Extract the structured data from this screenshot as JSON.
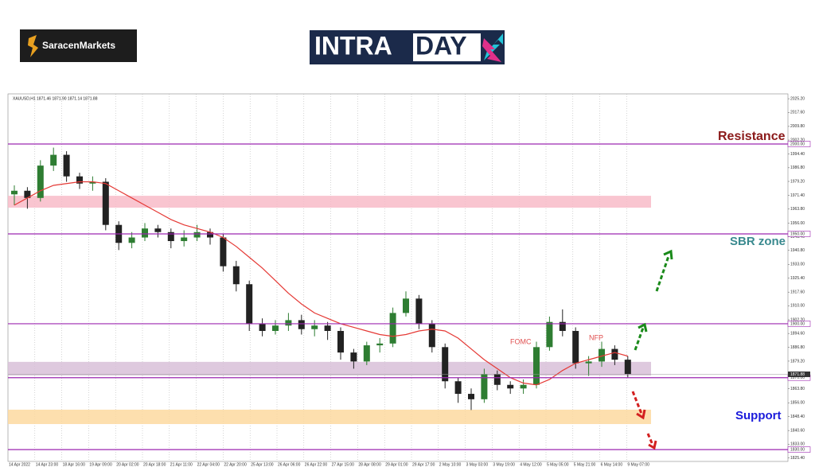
{
  "brand": "SaracenMarkets",
  "logo": [
    "INTRA",
    "DAY"
  ],
  "chart_data": {
    "type": "candlestick",
    "title": "XAUUSD,H1 1871.46 1871.90 1871.14 1871.88",
    "up_color": "#2e7d32",
    "down_color": "#222222",
    "open": [
      1972,
      1974,
      1970,
      1988,
      1994,
      1982,
      1978,
      1979,
      1955,
      1945,
      1948,
      1953,
      1951,
      1946,
      1948,
      1951,
      1948,
      1932,
      1922,
      1900,
      1896,
      1899,
      1902,
      1897,
      1899,
      1896,
      1884,
      1879,
      1888,
      1889,
      1906,
      1914,
      1900,
      1887,
      1868,
      1861,
      1858,
      1872,
      1866,
      1864,
      1866,
      1887,
      1901,
      1896,
      1878,
      1879,
      1886,
      1880
    ],
    "high": [
      1977,
      1976,
      1991,
      1998,
      1996,
      1984,
      1982,
      1981,
      1957,
      1951,
      1956,
      1955,
      1953,
      1952,
      1955,
      1953,
      1950,
      1935,
      1924,
      1903,
      1902,
      1906,
      1905,
      1902,
      1901,
      1898,
      1886,
      1890,
      1892,
      1909,
      1918,
      1916,
      1902,
      1889,
      1870,
      1864,
      1875,
      1874,
      1868,
      1869,
      1890,
      1904,
      1908,
      1898,
      1882,
      1890,
      1888,
      1882
    ],
    "low": [
      1966,
      1964,
      1968,
      1985,
      1979,
      1975,
      1974,
      1952,
      1941,
      1942,
      1946,
      1948,
      1942,
      1943,
      1946,
      1944,
      1929,
      1918,
      1896,
      1893,
      1894,
      1896,
      1894,
      1893,
      1891,
      1880,
      1875,
      1877,
      1884,
      1887,
      1904,
      1897,
      1884,
      1864,
      1856,
      1852,
      1856,
      1863,
      1861,
      1861,
      1864,
      1885,
      1893,
      1875,
      1871,
      1876,
      1877,
      1870
    ],
    "close": [
      1974,
      1970,
      1988,
      1994,
      1982,
      1978,
      1979,
      1955,
      1945,
      1948,
      1953,
      1951,
      1946,
      1948,
      1951,
      1948,
      1932,
      1922,
      1900,
      1896,
      1899,
      1902,
      1897,
      1899,
      1896,
      1884,
      1879,
      1888,
      1889,
      1906,
      1914,
      1900,
      1887,
      1868,
      1861,
      1858,
      1872,
      1866,
      1864,
      1866,
      1887,
      1901,
      1896,
      1878,
      1879,
      1886,
      1880,
      1872
    ],
    "moving_average": {
      "color": "#e53935",
      "values": [
        1966,
        1970,
        1974,
        1977,
        1978,
        1979,
        1979,
        1978,
        1974,
        1970,
        1966,
        1962,
        1958,
        1955,
        1953,
        1951,
        1948,
        1943,
        1937,
        1931,
        1924,
        1917,
        1911,
        1906,
        1903,
        1900,
        1898,
        1896,
        1894,
        1893,
        1894,
        1896,
        1897,
        1896,
        1892,
        1886,
        1880,
        1875,
        1870,
        1867,
        1866,
        1869,
        1874,
        1878,
        1880,
        1882,
        1884,
        1882
      ]
    },
    "time_labels": [
      "14 Apr 2022",
      "14 Apr 23:00",
      "18 Apr 16:00",
      "19 Apr 09:00",
      "20 Apr 02:00",
      "20 Apr 18:00",
      "21 Apr 11:00",
      "22 Apr 04:00",
      "22 Apr 20:00",
      "25 Apr 13:00",
      "26 Apr 06:00",
      "26 Apr 22:00",
      "27 Apr 15:00",
      "28 Apr 08:00",
      "29 Apr 01:00",
      "29 Apr 17:00",
      "2 May 10:00",
      "3 May 03:00",
      "3 May 19:00",
      "4 May 12:00",
      "5 May 05:00",
      "5 May 21:00",
      "6 May 14:00",
      "9 May 07:00"
    ],
    "ylim": [
      1823.4,
      2027.9
    ],
    "yticks": [
      {
        "value": 2025.2,
        "label": "2025.20"
      },
      {
        "value": 2017.6,
        "label": "2017.60"
      },
      {
        "value": 2009.8,
        "label": "2009.80"
      },
      {
        "value": 2002.2,
        "label": "2002.20"
      },
      {
        "value": 1994.4,
        "label": "1994.40"
      },
      {
        "value": 1986.8,
        "label": "1986.80"
      },
      {
        "value": 1979.2,
        "label": "1979.20"
      },
      {
        "value": 1971.4,
        "label": "1971.40"
      },
      {
        "value": 1963.8,
        "label": "1963.80"
      },
      {
        "value": 1956,
        "label": "1956.00"
      },
      {
        "value": 1948.4,
        "label": "1948.40"
      },
      {
        "value": 1940.8,
        "label": "1940.80"
      },
      {
        "value": 1933,
        "label": "1933.00"
      },
      {
        "value": 1925.4,
        "label": "1925.40"
      },
      {
        "value": 1917.6,
        "label": "1917.60"
      },
      {
        "value": 1910,
        "label": "1910.00"
      },
      {
        "value": 1902.2,
        "label": "1902.20"
      },
      {
        "value": 1894.6,
        "label": "1894.60"
      },
      {
        "value": 1886.8,
        "label": "1886.80"
      },
      {
        "value": 1879.2,
        "label": "1879.20"
      },
      {
        "value": 1871.4,
        "label": "1871.40"
      },
      {
        "value": 1863.8,
        "label": "1863.80"
      },
      {
        "value": 1856,
        "label": "1856.00"
      },
      {
        "value": 1848.4,
        "label": "1848.40"
      },
      {
        "value": 1840.6,
        "label": "1840.60"
      },
      {
        "value": 1833,
        "label": "1833.00"
      },
      {
        "value": 1825.4,
        "label": "1825.40"
      }
    ],
    "levels": [
      {
        "value": 2000,
        "label": "2000.00"
      },
      {
        "value": 1950,
        "label": "1950.00"
      },
      {
        "value": 1900,
        "label": "1900.00"
      },
      {
        "value": 1870,
        "label": "1870.00"
      },
      {
        "value": 1830,
        "label": "1830.00"
      }
    ],
    "level_color": "#9c27b0",
    "price": {
      "value": 1871.88,
      "label": "1871.88"
    },
    "zones": [
      {
        "from": 1964.6,
        "to": 1971.2,
        "color": "#f8bbc8"
      },
      {
        "from": 1871.2,
        "to": 1878.8,
        "color": "#d8bfd8"
      },
      {
        "from": 1844.2,
        "to": 1852.2,
        "color": "#fdd9a0"
      }
    ],
    "annotations": [
      {
        "text": "Resistance",
        "color": "#8b1a1a"
      },
      {
        "text": "SBR zone",
        "color": "#3a8a8f"
      },
      {
        "text": "Support",
        "color": "#1a1adb"
      },
      {
        "text": "FOMC",
        "color": "#e05050"
      },
      {
        "text": "NFP",
        "color": "#e05050"
      }
    ]
  }
}
